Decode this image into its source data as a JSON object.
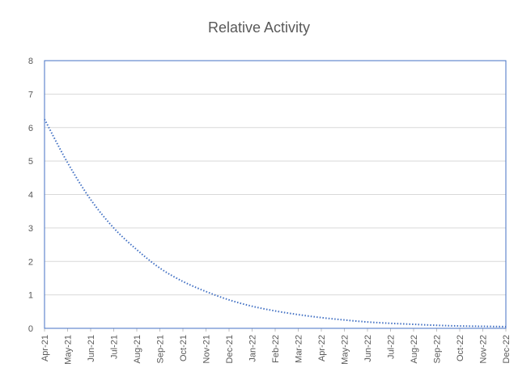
{
  "chart_data": {
    "type": "line",
    "title": "Relative Activity",
    "xlabel": "",
    "ylabel": "",
    "ylim": [
      0,
      8
    ],
    "yticks": [
      0,
      1,
      2,
      3,
      4,
      5,
      6,
      7,
      8
    ],
    "categories": [
      "Apr-21",
      "May-21",
      "Jun-21",
      "Jul-21",
      "Aug-21",
      "Sep-21",
      "Oct-21",
      "Nov-21",
      "Dec-21",
      "Jan-22",
      "Feb-22",
      "Mar-22",
      "Apr-22",
      "May-22",
      "Jun-22",
      "Jul-22",
      "Aug-22",
      "Sep-22",
      "Oct-22",
      "Nov-22",
      "Dec-22"
    ],
    "series": [
      {
        "values": [
          6.25,
          4.95,
          3.85,
          3.0,
          2.35,
          1.8,
          1.4,
          1.1,
          0.85,
          0.66,
          0.52,
          0.41,
          0.32,
          0.25,
          0.19,
          0.15,
          0.12,
          0.09,
          0.07,
          0.06,
          0.05
        ],
        "color": "#4472C4",
        "line_style": "dotted"
      }
    ],
    "grid": true,
    "legend": "none",
    "plot_border_color": "#4472C4",
    "grid_color": "#D9D9D9"
  }
}
